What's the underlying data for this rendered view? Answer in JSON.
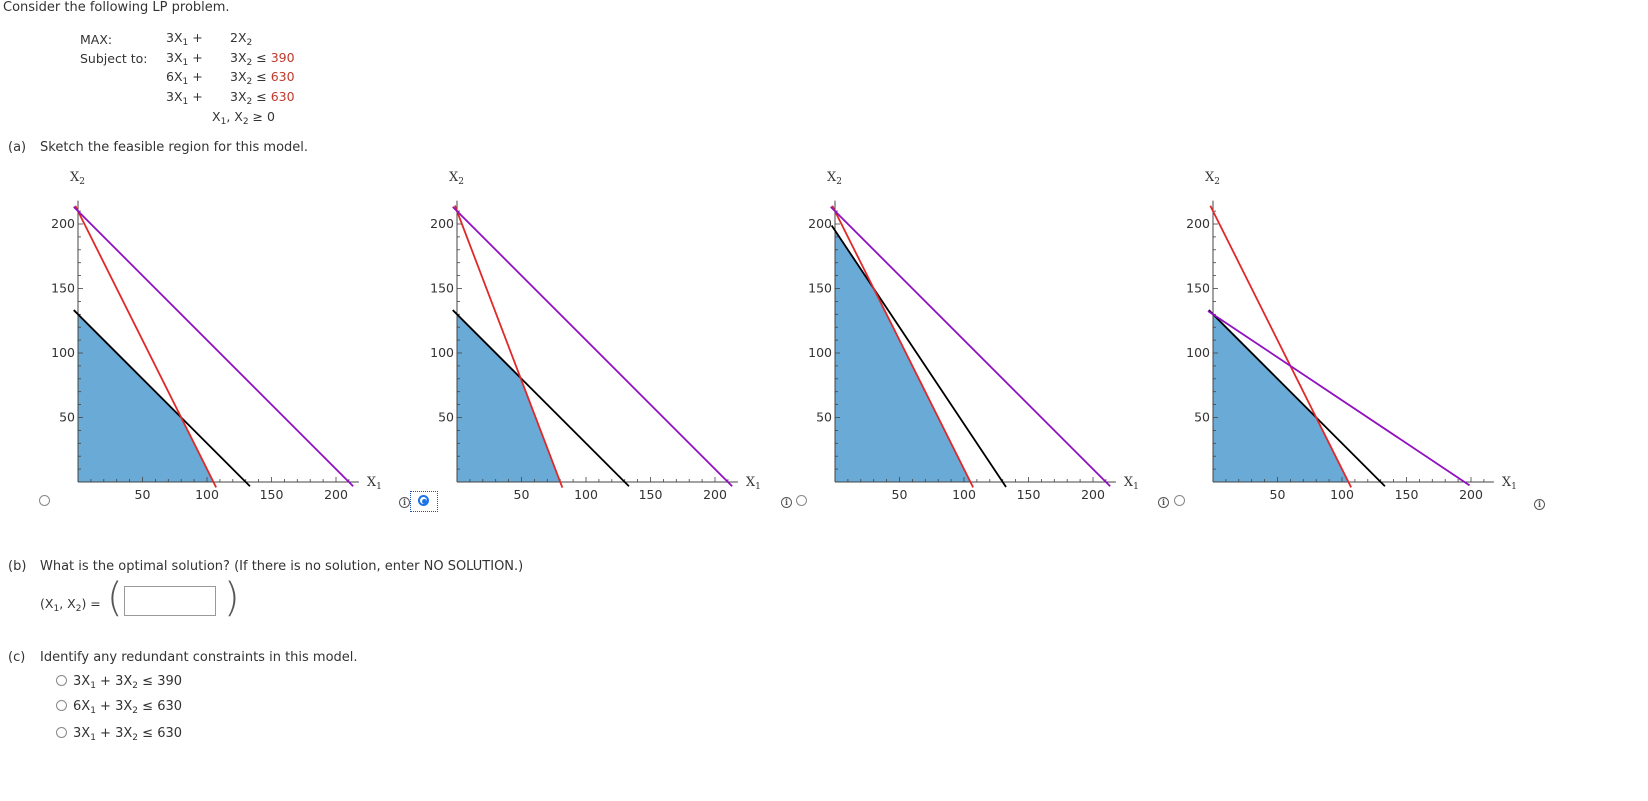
{
  "intro": "Consider the following LP problem.",
  "lp": {
    "max_label": "MAX:",
    "subject_label": "Subject to:",
    "objective": {
      "c1": "3",
      "c2": "2"
    },
    "constraints": [
      {
        "c1": "3",
        "c2": "3",
        "rhs": "390"
      },
      {
        "c1": "6",
        "c2": "3",
        "rhs": "630"
      },
      {
        "c1": "3",
        "c2": "3",
        "rhs": "630"
      }
    ],
    "nonneg": "≥ 0"
  },
  "part_a": {
    "tag": "(a)",
    "text": "Sketch the feasible region for this model."
  },
  "part_b": {
    "tag": "(b)",
    "text": "What is the optimal solution? (If there is no solution, enter NO SOLUTION.)",
    "lhs_prefix": "(X",
    "lhs_suffix": ") =",
    "input_value": ""
  },
  "part_c": {
    "tag": "(c)",
    "text": "Identify any redundant constraints in this model.",
    "options": [
      {
        "c1": "3",
        "c2": "3",
        "rhs": "390",
        "selected": false
      },
      {
        "c1": "6",
        "c2": "3",
        "rhs": "630",
        "selected": false
      },
      {
        "c1": "3",
        "c2": "3",
        "rhs": "630",
        "selected": false
      }
    ]
  },
  "colors": {
    "feasible": "#6aaad6",
    "black_line": "#000000",
    "red_line": "#e02828",
    "purple_line": "#9010c0",
    "radio_selected": "#1a73e8"
  },
  "chart_data": [
    {
      "type": "line",
      "option_index": 0,
      "selected": false,
      "xlabel": "X1",
      "ylabel": "X2",
      "xlim": [
        0,
        210
      ],
      "ylim": [
        0,
        215
      ],
      "xticks": [
        50,
        100,
        150,
        200
      ],
      "yticks": [
        50,
        100,
        150,
        200
      ],
      "series": [
        {
          "color": "black",
          "points": [
            [
              0,
              130
            ],
            [
              130,
              0
            ]
          ]
        },
        {
          "color": "red",
          "points": [
            [
              0,
              210
            ],
            [
              105,
              0
            ]
          ]
        },
        {
          "color": "purple",
          "points": [
            [
              0,
              210
            ],
            [
              210,
              0
            ]
          ]
        }
      ],
      "feasible_region": [
        [
          0,
          0
        ],
        [
          0,
          130
        ],
        [
          80,
          50
        ],
        [
          105,
          0
        ]
      ]
    },
    {
      "type": "line",
      "option_index": 1,
      "selected": true,
      "xlabel": "X1",
      "ylabel": "X2",
      "xlim": [
        0,
        210
      ],
      "ylim": [
        0,
        215
      ],
      "xticks": [
        50,
        100,
        150,
        200
      ],
      "yticks": [
        50,
        100,
        150,
        200
      ],
      "series": [
        {
          "color": "black",
          "points": [
            [
              0,
              130
            ],
            [
              130,
              0
            ]
          ]
        },
        {
          "color": "red",
          "points": [
            [
              0,
              210
            ],
            [
              80,
              0
            ]
          ]
        },
        {
          "color": "purple",
          "points": [
            [
              0,
              210
            ],
            [
              210,
              0
            ]
          ]
        }
      ],
      "feasible_region": [
        [
          0,
          0
        ],
        [
          0,
          130
        ],
        [
          50,
          80
        ],
        [
          80,
          0
        ]
      ]
    },
    {
      "type": "line",
      "option_index": 2,
      "selected": false,
      "xlabel": "X1",
      "ylabel": "X2",
      "xlim": [
        0,
        210
      ],
      "ylim": [
        0,
        215
      ],
      "xticks": [
        50,
        100,
        150,
        200
      ],
      "yticks": [
        50,
        100,
        150,
        200
      ],
      "series": [
        {
          "color": "black",
          "points": [
            [
              0,
              195
            ],
            [
              130,
              0
            ]
          ]
        },
        {
          "color": "red",
          "points": [
            [
              0,
              210
            ],
            [
              105,
              0
            ]
          ]
        },
        {
          "color": "purple",
          "points": [
            [
              0,
              210
            ],
            [
              210,
              0
            ]
          ]
        }
      ],
      "feasible_region": [
        [
          0,
          0
        ],
        [
          0,
          195
        ],
        [
          30,
          150
        ],
        [
          105,
          0
        ]
      ]
    },
    {
      "type": "line",
      "option_index": 3,
      "selected": false,
      "xlabel": "X1",
      "ylabel": "X2",
      "xlim": [
        0,
        210
      ],
      "ylim": [
        0,
        215
      ],
      "xticks": [
        50,
        100,
        150,
        200
      ],
      "yticks": [
        50,
        100,
        150,
        200
      ],
      "series": [
        {
          "color": "black",
          "points": [
            [
              0,
              130
            ],
            [
              130,
              0
            ]
          ]
        },
        {
          "color": "red",
          "points": [
            [
              0,
              210
            ],
            [
              105,
              0
            ]
          ]
        },
        {
          "color": "purple",
          "points": [
            [
              0,
              130
            ],
            [
              195,
              0
            ]
          ]
        }
      ],
      "feasible_region": [
        [
          0,
          0
        ],
        [
          0,
          130
        ],
        [
          80,
          50
        ],
        [
          105,
          0
        ]
      ]
    }
  ]
}
